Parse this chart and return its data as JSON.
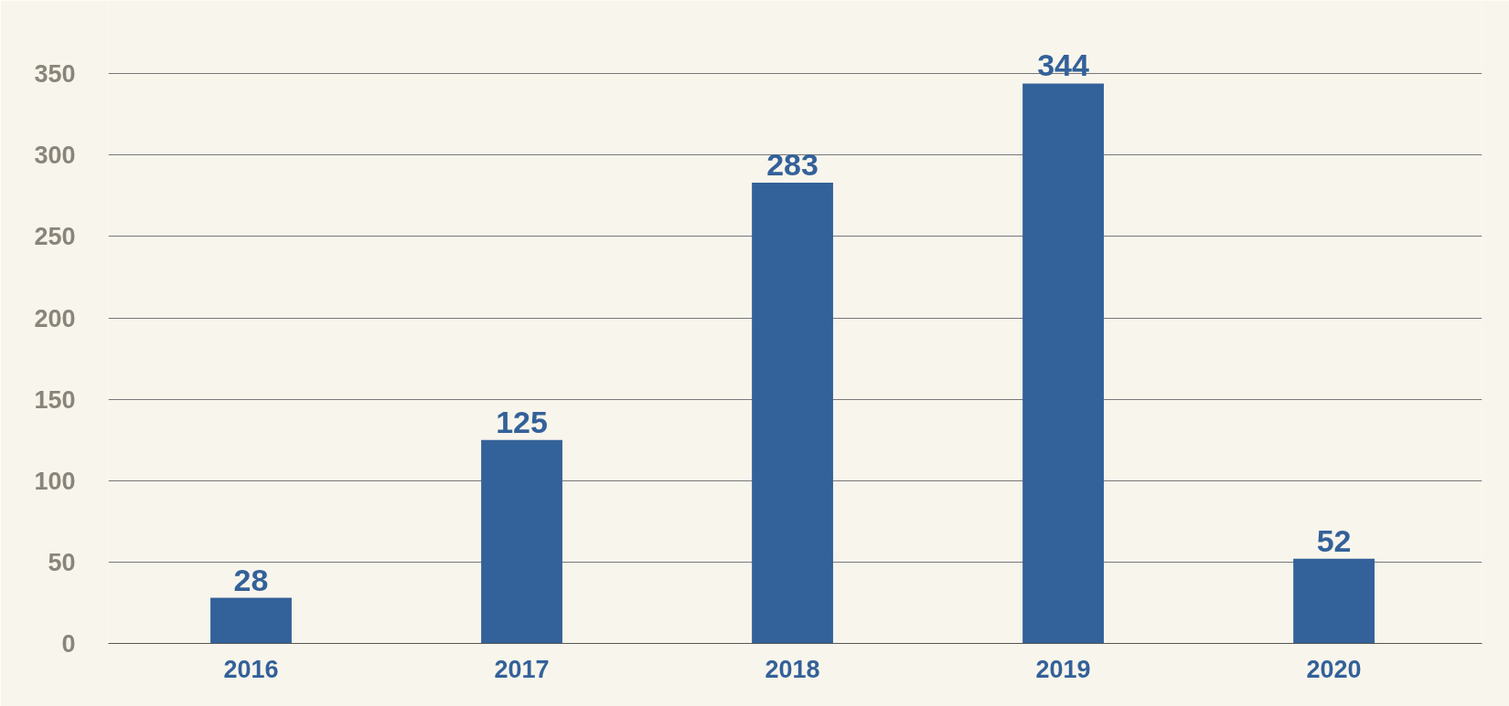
{
  "chart_data": {
    "type": "bar",
    "categories": [
      "2016",
      "2017",
      "2018",
      "2019",
      "2020"
    ],
    "values": [
      28,
      125,
      283,
      344,
      52
    ],
    "color": "#336199",
    "ylim": [
      0,
      395
    ],
    "yticks": [
      0,
      50,
      100,
      150,
      200,
      250,
      300,
      350
    ],
    "grid": "y",
    "data_labels": true
  }
}
